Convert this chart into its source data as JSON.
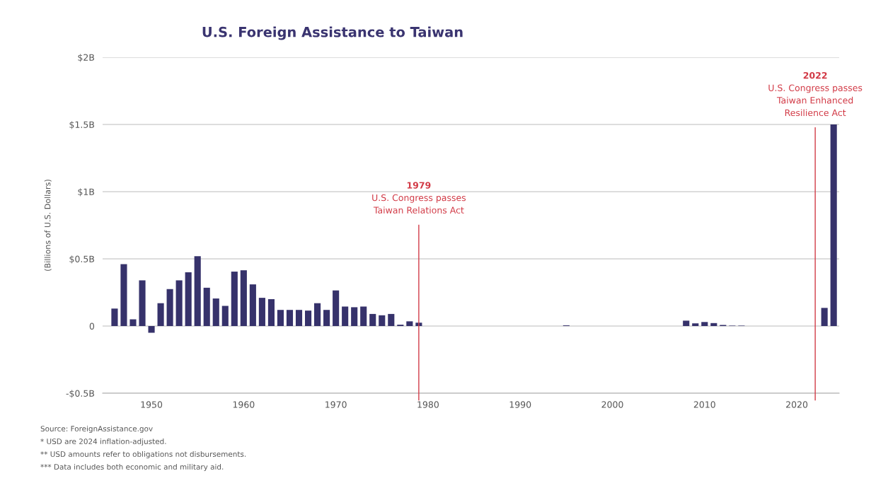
{
  "chart_data": {
    "type": "bar",
    "title": "U.S. Foreign Assistance to Taiwan",
    "ylabel": "(Billions of U.S. Dollars)",
    "x": [
      1946,
      1947,
      1948,
      1949,
      1950,
      1951,
      1952,
      1953,
      1954,
      1955,
      1956,
      1957,
      1958,
      1959,
      1960,
      1961,
      1962,
      1963,
      1964,
      1965,
      1966,
      1967,
      1968,
      1969,
      1970,
      1971,
      1972,
      1973,
      1974,
      1975,
      1976,
      1977,
      1978,
      1979,
      1980,
      1981,
      1982,
      1983,
      1984,
      1985,
      1986,
      1987,
      1988,
      1989,
      1990,
      1991,
      1992,
      1993,
      1994,
      1995,
      1996,
      1997,
      1998,
      1999,
      2000,
      2001,
      2002,
      2003,
      2004,
      2005,
      2006,
      2007,
      2008,
      2009,
      2010,
      2011,
      2012,
      2013,
      2014,
      2015,
      2016,
      2017,
      2018,
      2019,
      2020,
      2021,
      2022,
      2023,
      2024
    ],
    "values": [
      0.13,
      0.46,
      0.05,
      0.34,
      -0.05,
      0.17,
      0.275,
      0.34,
      0.4,
      0.52,
      0.285,
      0.205,
      0.15,
      0.405,
      0.415,
      0.31,
      0.21,
      0.2,
      0.12,
      0.12,
      0.12,
      0.115,
      0.17,
      0.12,
      0.265,
      0.145,
      0.14,
      0.145,
      0.09,
      0.08,
      0.09,
      0.01,
      0.035,
      0.025,
      0,
      0,
      0,
      0,
      0,
      0,
      0,
      0,
      0,
      0,
      0,
      0,
      0,
      0,
      0,
      0.005,
      0,
      0,
      0,
      0,
      0,
      0,
      0,
      0,
      0,
      0,
      null,
      null,
      0.04,
      0.02,
      0.03,
      0.022,
      0.008,
      0.003,
      0.003,
      0,
      0,
      0,
      0,
      0,
      0,
      null,
      0,
      0.135,
      1.5
    ],
    "color": "#36326b",
    "xlim": [
      1944.7,
      2024.6
    ],
    "xticks": [
      1950,
      1960,
      1970,
      1980,
      1990,
      2000,
      2010,
      2020
    ],
    "ylim": [
      -0.5,
      2
    ],
    "yticks": [
      {
        "value": -0.5,
        "label": "-$0.5B"
      },
      0,
      {
        "value": 0.5,
        "label": "$0.5B"
      },
      {
        "value": 1,
        "label": "$1B"
      },
      {
        "value": 1.5,
        "label": "$1.5B"
      },
      {
        "value": 2,
        "label": "$2B"
      }
    ],
    "grid": "y",
    "ref_lines": [
      {
        "axis": "x",
        "value": 1979,
        "label": "1979\nU.S. Congress passes\nTaiwan Relations Act",
        "color": "#d23b47",
        "line_style": "solid"
      },
      {
        "axis": "x",
        "value": 2022,
        "label": "2022\nU.S. Congress passes\nTaiwan Enhanced\nResilience Act",
        "color": "#d23b47",
        "line_style": "solid"
      }
    ],
    "annotations": [
      "Source: ForeignAssistance.gov",
      "* USD are 2024 inflation-adjusted.",
      "** USD amounts refer to obligations not disbursements.",
      "*** Data includes both economic and military aid."
    ]
  }
}
